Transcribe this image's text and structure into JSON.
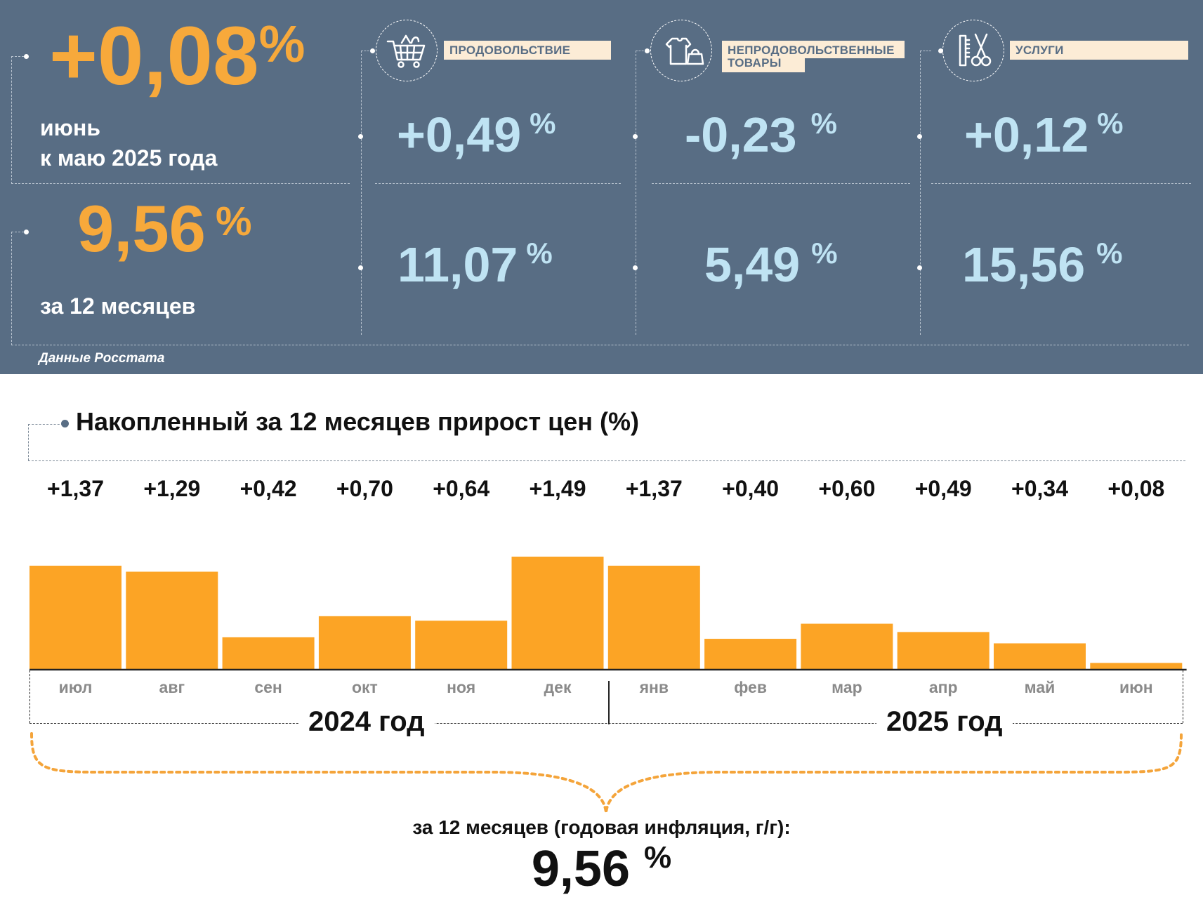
{
  "header": {
    "monthly": {
      "value": "+0,08",
      "unit": "%",
      "line1": "июнь",
      "line2": "к маю 2025 года"
    },
    "annual": {
      "value": "9,56",
      "unit": "%",
      "label": "за 12 месяцев"
    },
    "source": "Данные Росстата",
    "categories": [
      {
        "name": "ПРОДОВОЛЬСТВИЕ",
        "icon": "shopping-cart-icon",
        "monthly": "+0,49",
        "annual": "11,07",
        "unit": "%"
      },
      {
        "name_line1": "НЕПРОДОВОЛЬСТВЕННЫЕ",
        "name_line2": "ТОВАРЫ",
        "icon": "clothing-icon",
        "monthly": "-0,23",
        "annual": "5,49",
        "unit": "%"
      },
      {
        "name": "УСЛУГИ",
        "icon": "scissors-comb-icon",
        "monthly": "+0,12",
        "annual": "15,56",
        "unit": "%"
      }
    ]
  },
  "colors": {
    "panel": "#586d84",
    "accent_orange": "#f7a93b",
    "value_blue": "#bfe3f3",
    "bar": "#fca425",
    "label_bg": "#fcecd6"
  },
  "chart_data": {
    "type": "bar",
    "title": "Накопленный за 12 месяцев прирост цен (%)",
    "categories": [
      "июл",
      "авг",
      "сен",
      "окт",
      "ноя",
      "дек",
      "янв",
      "фев",
      "мар",
      "апр",
      "май",
      "июн"
    ],
    "values": [
      1.37,
      1.29,
      0.42,
      0.7,
      0.64,
      1.49,
      1.37,
      0.4,
      0.6,
      0.49,
      0.34,
      0.08
    ],
    "value_labels": [
      "+1,37",
      "+1,29",
      "+0,42",
      "+0,70",
      "+0,64",
      "+1,49",
      "+1,37",
      "+0,40",
      "+0,60",
      "+0,49",
      "+0,34",
      "+0,08"
    ],
    "groups": [
      {
        "label": "2024 год",
        "months": 6
      },
      {
        "label": "2025 год",
        "months": 6
      }
    ],
    "ylim": [
      0,
      1.49
    ],
    "grid": false
  },
  "footer": {
    "label": "за 12 месяцев (годовая инфляция, г/г):",
    "value": "9,56",
    "unit": "%"
  }
}
